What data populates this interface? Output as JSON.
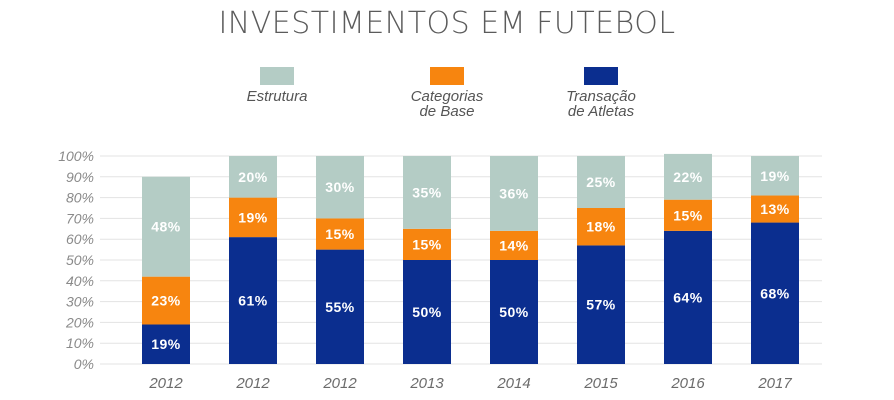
{
  "chart_data": {
    "type": "bar",
    "stacked": true,
    "title": "INVESTIMENTOS EM FUTEBOL",
    "categories": [
      "2012",
      "2012",
      "2012",
      "2013",
      "2014",
      "2015",
      "2016",
      "2017"
    ],
    "series": [
      {
        "name": "Transação\nde Atletas",
        "color": "#0b2e8f",
        "values": [
          19,
          61,
          55,
          50,
          50,
          57,
          64,
          68
        ]
      },
      {
        "name": "Categorias\nde Base",
        "color": "#f7850f",
        "values": [
          23,
          19,
          15,
          15,
          14,
          18,
          15,
          13
        ]
      },
      {
        "name": "Estrutura",
        "color": "#b4ccc5",
        "values": [
          48,
          20,
          30,
          35,
          36,
          25,
          22,
          19
        ]
      }
    ],
    "data_labels": [
      [
        "19%",
        "61%",
        "55%",
        "50%",
        "50%",
        "57%",
        "64%",
        "68%"
      ],
      [
        "23%",
        "19%",
        "15%",
        "15%",
        "14%",
        "18%",
        "15%",
        "13%"
      ],
      [
        "48%",
        "20%",
        "30%",
        "35%",
        "36%",
        "25%",
        "22%",
        "19%"
      ]
    ],
    "ylim": [
      0,
      100
    ],
    "yticks": [
      "0%",
      "10%",
      "20%",
      "30%",
      "40%",
      "50%",
      "60%",
      "70%",
      "80%",
      "90%",
      "100%"
    ],
    "grid": true,
    "legend": {
      "position": "top-center",
      "order": [
        "Estrutura",
        "Categorias\nde Base",
        "Transação\nde Atletas"
      ]
    }
  }
}
